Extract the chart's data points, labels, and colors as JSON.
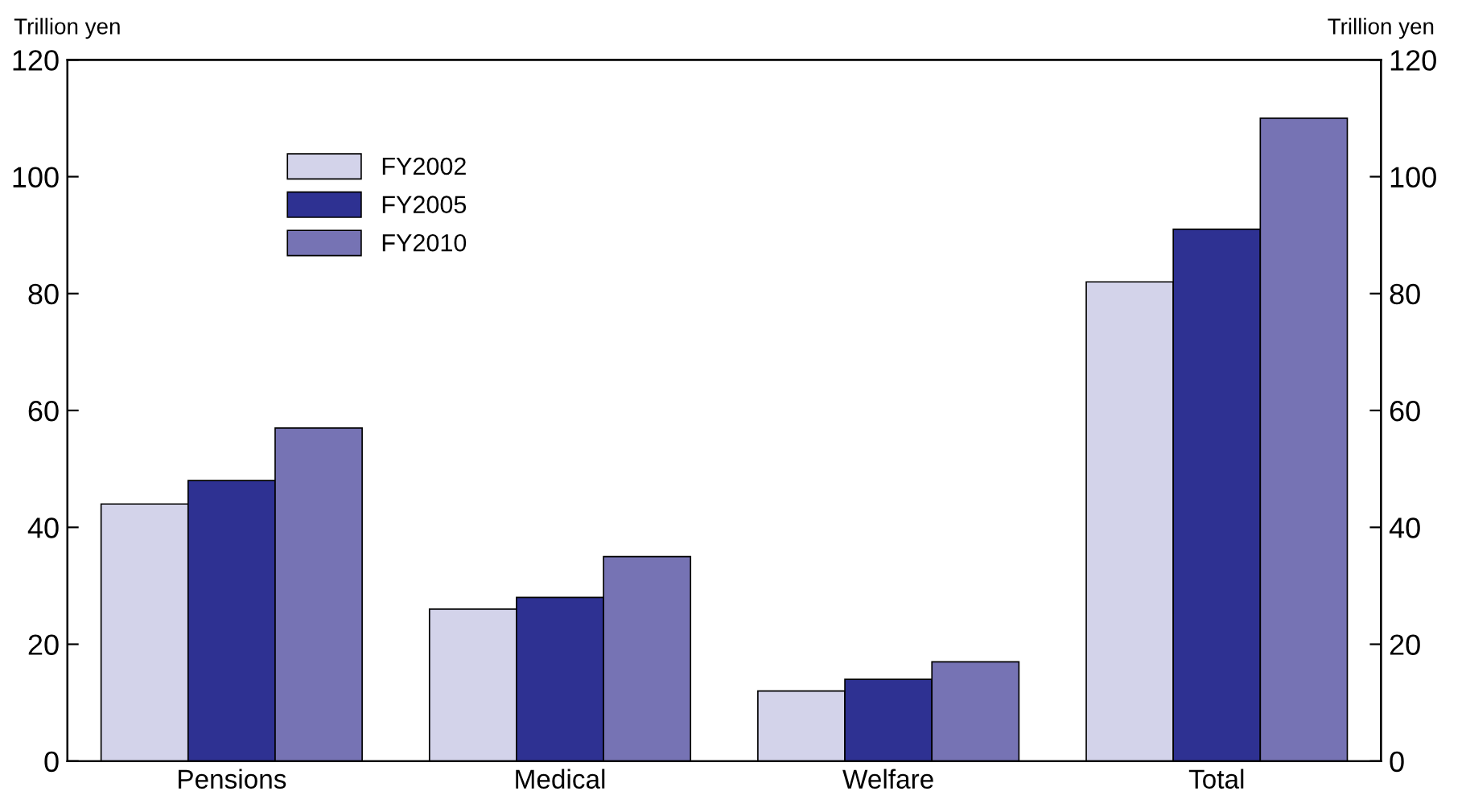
{
  "chart_data": {
    "type": "bar",
    "ylabel": "Trillion yen",
    "y2label": "Trillion yen",
    "categories": [
      "Pensions",
      "Medical",
      "Welfare",
      "Total"
    ],
    "series": [
      {
        "name": "FY2002",
        "color": "#d3d3ea",
        "values": [
          44,
          26,
          12,
          82
        ]
      },
      {
        "name": "FY2005",
        "color": "#2e3192",
        "values": [
          48,
          28,
          14,
          91
        ]
      },
      {
        "name": "FY2010",
        "color": "#7673b4",
        "values": [
          57,
          35,
          17,
          110
        ]
      }
    ],
    "ylim": [
      0,
      120
    ],
    "yticks": [
      0,
      20,
      40,
      60,
      80,
      100,
      120
    ],
    "y2lim": [
      0,
      120
    ],
    "y2ticks": [
      0,
      20,
      40,
      60,
      80,
      100,
      120
    ],
    "grid": false,
    "legend": "top left"
  }
}
